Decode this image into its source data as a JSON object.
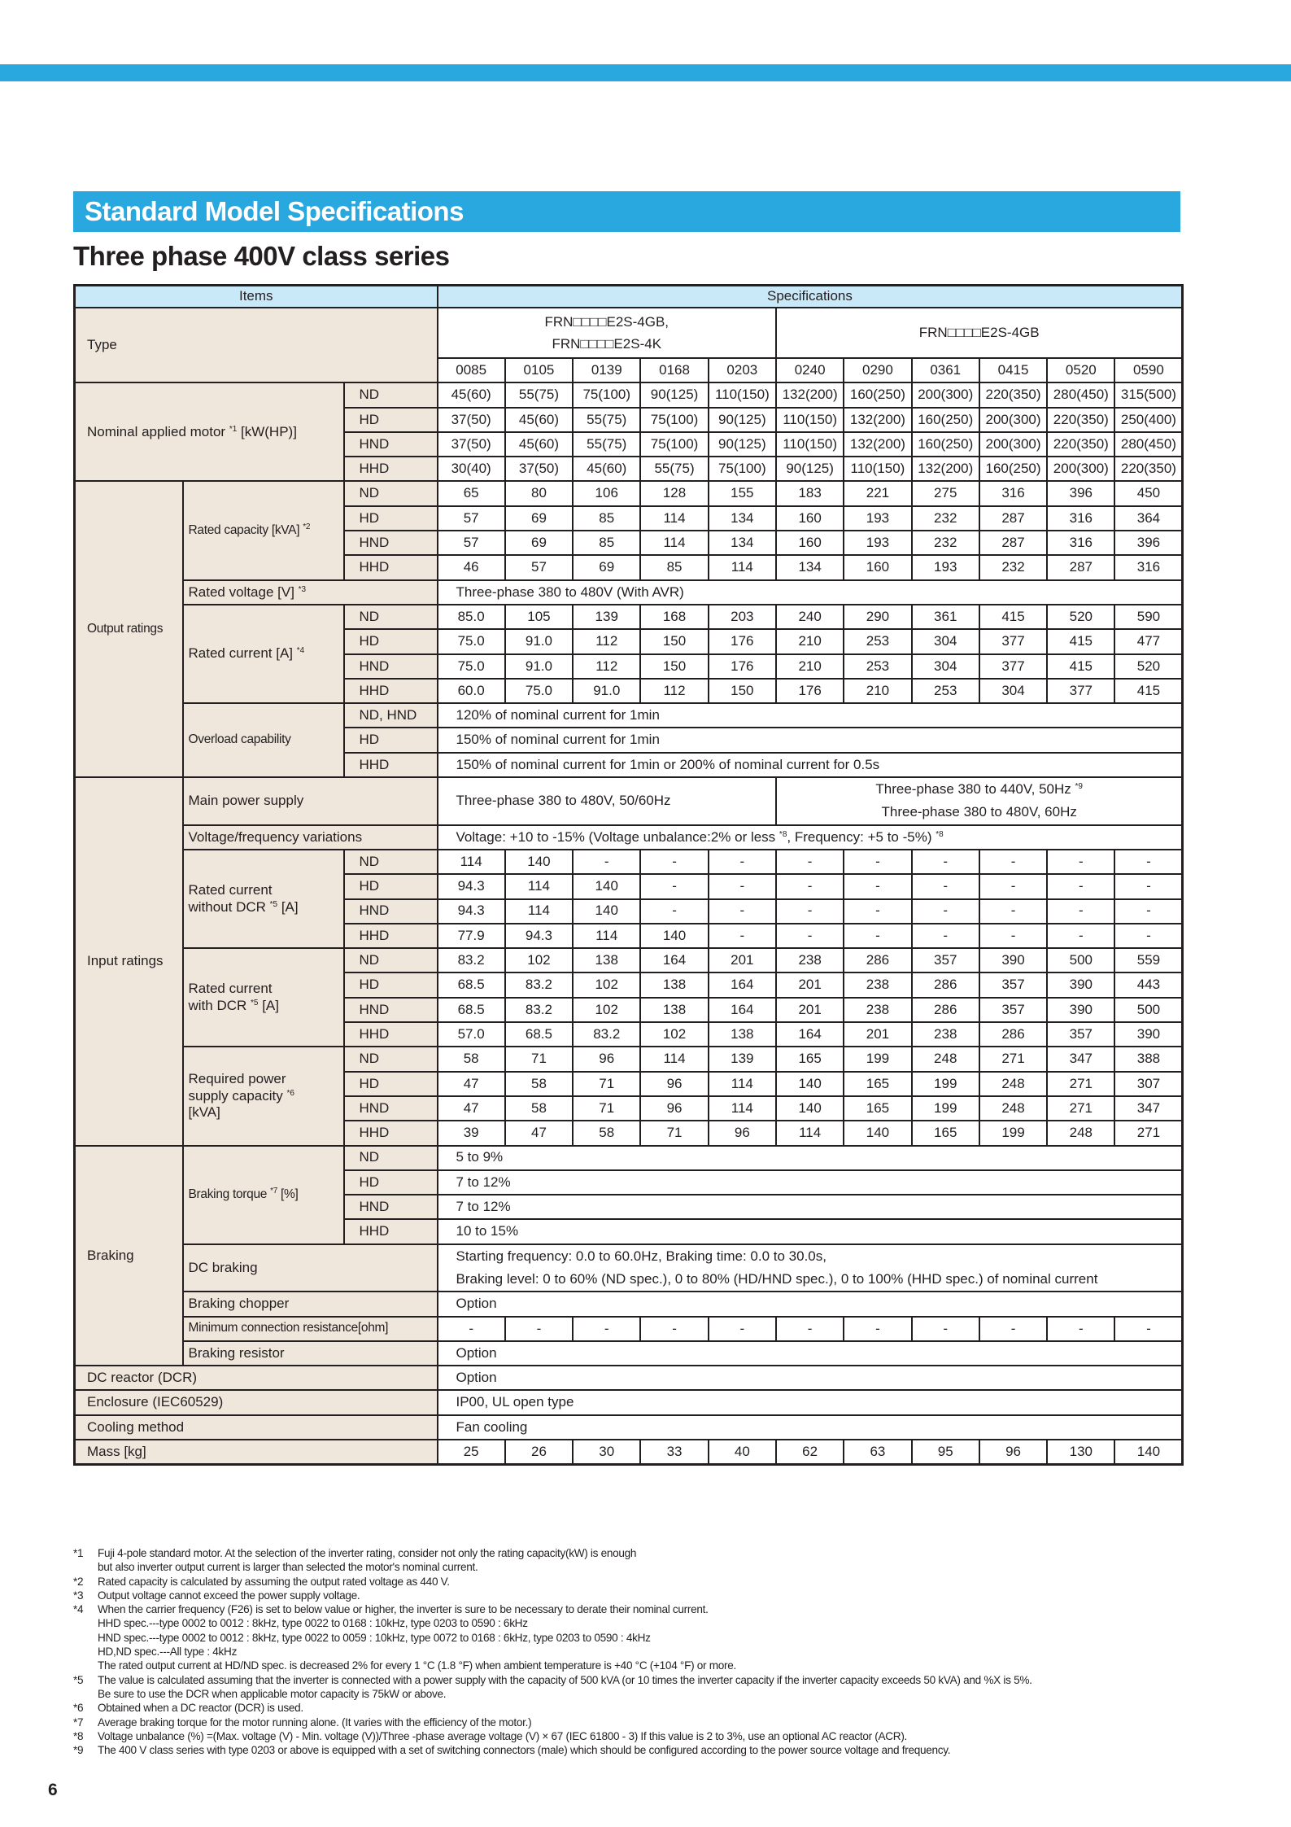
{
  "colors": {
    "accent": "#29a8e0",
    "header_cell": "#c9e8f8",
    "label_cell": "#efe6dc"
  },
  "section_title": "Standard Model Specifications",
  "subtitle": "Three phase 400V class series",
  "table": {
    "items_label": "Items",
    "specs_label": "Specifications",
    "type": {
      "label": "Type",
      "group1": [
        "FRN□□□□E2S-4GB,",
        "FRN□□□□E2S-4K"
      ],
      "group2": "FRN□□□□E2S-4GB",
      "codes": [
        "0085",
        "0105",
        "0139",
        "0168",
        "0203",
        "0240",
        "0290",
        "0361",
        "0415",
        "0520",
        "0590"
      ]
    },
    "sections": [
      {
        "label": "Nominal applied motor *1 [kW(HP)]",
        "wide": true,
        "modes": [
          {
            "mode": "ND",
            "values": [
              "45(60)",
              "55(75)",
              "75(100)",
              "90(125)",
              "110(150)",
              "132(200)",
              "160(250)",
              "200(300)",
              "220(350)",
              "280(450)",
              "315(500)"
            ]
          },
          {
            "mode": "HD",
            "values": [
              "37(50)",
              "45(60)",
              "55(75)",
              "75(100)",
              "90(125)",
              "110(150)",
              "132(200)",
              "160(250)",
              "200(300)",
              "220(350)",
              "250(400)"
            ]
          },
          {
            "mode": "HND",
            "values": [
              "37(50)",
              "45(60)",
              "55(75)",
              "75(100)",
              "90(125)",
              "110(150)",
              "132(200)",
              "160(250)",
              "200(300)",
              "220(350)",
              "280(450)"
            ]
          },
          {
            "mode": "HHD",
            "values": [
              "30(40)",
              "37(50)",
              "45(60)",
              "55(75)",
              "75(100)",
              "90(125)",
              "110(150)",
              "132(200)",
              "160(250)",
              "200(300)",
              "220(350)"
            ]
          }
        ]
      },
      {
        "label": "Output ratings",
        "small": true,
        "items": [
          {
            "label": [
              "Rated capacity [kVA] *2"
            ],
            "small": true,
            "modes": [
              {
                "mode": "ND",
                "values": [
                  "65",
                  "80",
                  "106",
                  "128",
                  "155",
                  "183",
                  "221",
                  "275",
                  "316",
                  "396",
                  "450"
                ]
              },
              {
                "mode": "HD",
                "values": [
                  "57",
                  "69",
                  "85",
                  "114",
                  "134",
                  "160",
                  "193",
                  "232",
                  "287",
                  "316",
                  "364"
                ]
              },
              {
                "mode": "HND",
                "values": [
                  "57",
                  "69",
                  "85",
                  "114",
                  "134",
                  "160",
                  "193",
                  "232",
                  "287",
                  "316",
                  "396"
                ]
              },
              {
                "mode": "HHD",
                "values": [
                  "46",
                  "57",
                  "69",
                  "85",
                  "114",
                  "134",
                  "160",
                  "193",
                  "232",
                  "287",
                  "316"
                ]
              }
            ]
          },
          {
            "label": [
              "Rated voltage [V] *3"
            ],
            "text": "Three-phase 380 to 480V (With AVR)"
          },
          {
            "label": [
              "Rated current [A] *4"
            ],
            "modes": [
              {
                "mode": "ND",
                "values": [
                  "85.0",
                  "105",
                  "139",
                  "168",
                  "203",
                  "240",
                  "290",
                  "361",
                  "415",
                  "520",
                  "590"
                ]
              },
              {
                "mode": "HD",
                "values": [
                  "75.0",
                  "91.0",
                  "112",
                  "150",
                  "176",
                  "210",
                  "253",
                  "304",
                  "377",
                  "415",
                  "477"
                ]
              },
              {
                "mode": "HND",
                "values": [
                  "75.0",
                  "91.0",
                  "112",
                  "150",
                  "176",
                  "210",
                  "253",
                  "304",
                  "377",
                  "415",
                  "520"
                ]
              },
              {
                "mode": "HHD",
                "values": [
                  "60.0",
                  "75.0",
                  "91.0",
                  "112",
                  "150",
                  "176",
                  "210",
                  "253",
                  "304",
                  "377",
                  "415"
                ]
              }
            ]
          },
          {
            "label": [
              "Overload capability"
            ],
            "small": true,
            "modes": [
              {
                "mode": "ND, HND",
                "text": "120% of nominal current for 1min"
              },
              {
                "mode": "HD",
                "text": "150% of nominal current for 1min"
              },
              {
                "mode": "HHD",
                "text": "150% of nominal current for 1min or 200% of nominal current for 0.5s"
              }
            ]
          }
        ]
      },
      {
        "label": "Input ratings",
        "items": [
          {
            "label": [
              "Main power supply"
            ],
            "split": {
              "left": "Three-phase 380 to 480V, 50/60Hz",
              "right": [
                "Three-phase 380 to 440V, 50Hz *9",
                "Three-phase 380 to 480V, 60Hz"
              ]
            }
          },
          {
            "label": [
              "Voltage/frequency variations"
            ],
            "text": "Voltage: +10 to -15% (Voltage unbalance:2% or less *8, Frequency: +5 to -5%) *8"
          },
          {
            "label": [
              "Rated current",
              "without DCR *5 [A]"
            ],
            "modes": [
              {
                "mode": "ND",
                "values": [
                  "114",
                  "140",
                  "-",
                  "-",
                  "-",
                  "-",
                  "-",
                  "-",
                  "-",
                  "-",
                  "-"
                ]
              },
              {
                "mode": "HD",
                "values": [
                  "94.3",
                  "114",
                  "140",
                  "-",
                  "-",
                  "-",
                  "-",
                  "-",
                  "-",
                  "-",
                  "-"
                ]
              },
              {
                "mode": "HND",
                "values": [
                  "94.3",
                  "114",
                  "140",
                  "-",
                  "-",
                  "-",
                  "-",
                  "-",
                  "-",
                  "-",
                  "-"
                ]
              },
              {
                "mode": "HHD",
                "values": [
                  "77.9",
                  "94.3",
                  "114",
                  "140",
                  "-",
                  "-",
                  "-",
                  "-",
                  "-",
                  "-",
                  "-"
                ]
              }
            ]
          },
          {
            "label": [
              "Rated current",
              "with DCR *5 [A]"
            ],
            "modes": [
              {
                "mode": "ND",
                "values": [
                  "83.2",
                  "102",
                  "138",
                  "164",
                  "201",
                  "238",
                  "286",
                  "357",
                  "390",
                  "500",
                  "559"
                ]
              },
              {
                "mode": "HD",
                "values": [
                  "68.5",
                  "83.2",
                  "102",
                  "138",
                  "164",
                  "201",
                  "238",
                  "286",
                  "357",
                  "390",
                  "443"
                ]
              },
              {
                "mode": "HND",
                "values": [
                  "68.5",
                  "83.2",
                  "102",
                  "138",
                  "164",
                  "201",
                  "238",
                  "286",
                  "357",
                  "390",
                  "500"
                ]
              },
              {
                "mode": "HHD",
                "values": [
                  "57.0",
                  "68.5",
                  "83.2",
                  "102",
                  "138",
                  "164",
                  "201",
                  "238",
                  "286",
                  "357",
                  "390"
                ]
              }
            ]
          },
          {
            "label": [
              "Required power",
              "supply capacity *6",
              " [kVA]"
            ],
            "modes": [
              {
                "mode": "ND",
                "values": [
                  "58",
                  "71",
                  "96",
                  "114",
                  "139",
                  "165",
                  "199",
                  "248",
                  "271",
                  "347",
                  "388"
                ]
              },
              {
                "mode": "HD",
                "values": [
                  "47",
                  "58",
                  "71",
                  "96",
                  "114",
                  "140",
                  "165",
                  "199",
                  "248",
                  "271",
                  "307"
                ]
              },
              {
                "mode": "HND",
                "values": [
                  "47",
                  "58",
                  "71",
                  "96",
                  "114",
                  "140",
                  "165",
                  "199",
                  "248",
                  "271",
                  "347"
                ]
              },
              {
                "mode": "HHD",
                "values": [
                  "39",
                  "47",
                  "58",
                  "71",
                  "96",
                  "114",
                  "140",
                  "165",
                  "199",
                  "248",
                  "271"
                ]
              }
            ]
          }
        ]
      },
      {
        "label": "Braking",
        "items": [
          {
            "label": [
              "Braking torque *7 [%]"
            ],
            "small": true,
            "modes": [
              {
                "mode": "ND",
                "text": "5 to 9%"
              },
              {
                "mode": "HD",
                "text": "7 to 12%"
              },
              {
                "mode": "HND",
                "text": "7 to 12%"
              },
              {
                "mode": "HHD",
                "text": "10 to 15%"
              }
            ]
          },
          {
            "label": [
              "DC braking"
            ],
            "lines": [
              "Starting frequency: 0.0 to 60.0Hz, Braking time: 0.0 to 30.0s,",
              "Braking level:  0 to 60% (ND spec.), 0 to 80% (HD/HND spec.), 0 to 100% (HHD spec.) of nominal current"
            ]
          },
          {
            "label": [
              "Braking chopper"
            ],
            "text": "Option"
          },
          {
            "label": [
              "Minimum connection resistance[ohm]"
            ],
            "small": true,
            "values": [
              "-",
              "-",
              "-",
              "-",
              "-",
              "-",
              "-",
              "-",
              "-",
              "-",
              "-"
            ]
          },
          {
            "label": [
              "Braking resistor"
            ],
            "text": "Option"
          }
        ]
      },
      {
        "label": "DC reactor (DCR)",
        "single": true,
        "text": "Option"
      },
      {
        "label": "Enclosure (IEC60529)",
        "single": true,
        "text": "IP00, UL open type"
      },
      {
        "label": "Cooling method",
        "single": true,
        "text": "Fan cooling"
      },
      {
        "label": "Mass [kg]",
        "single": true,
        "values": [
          "25",
          "26",
          "30",
          "33",
          "40",
          "62",
          "63",
          "95",
          "96",
          "130",
          "140"
        ]
      }
    ]
  },
  "footnotes": [
    {
      "mark": "*1",
      "lines": [
        "Fuji 4-pole standard motor. At the selection of the inverter rating, consider not only the rating capacity(kW) is enough",
        "but also inverter output current is larger than selected the motor's nominal current."
      ]
    },
    {
      "mark": "*2",
      "lines": [
        "Rated capacity is calculated by assuming the output rated voltage as 440 V."
      ]
    },
    {
      "mark": "*3",
      "lines": [
        "Output voltage cannot exceed the power supply voltage."
      ]
    },
    {
      "mark": "*4",
      "lines": [
        "When the carrier frequency (F26)  is set to below value or higher, the inverter is sure to be necessary to derate their nominal current.",
        "HHD spec.---type 0002 to 0012 : 8kHz, type 0022 to 0168 : 10kHz, type 0203 to 0590 : 6kHz",
        "HND spec.---type 0002 to 0012 : 8kHz, type 0022 to 0059 : 10kHz, type 0072 to 0168 : 6kHz, type 0203 to 0590 : 4kHz",
        "HD,ND spec.---All type : 4kHz",
        "The rated output current at HD/ND spec. is decreased 2% for every 1 °C (1.8 °F) when ambient temperature is +40 °C (+104 °F) or more."
      ]
    },
    {
      "mark": "*5",
      "lines": [
        "The value is calculated assuming that the inverter is connected with a power supply with the capacity of 500 kVA (or 10 times the inverter capacity if the inverter capacity exceeds 50 kVA) and %X is 5%.",
        "Be sure to use the DCR when applicable motor capacity is 75kW or above."
      ]
    },
    {
      "mark": "*6",
      "lines": [
        "Obtained when a DC reactor (DCR) is used."
      ]
    },
    {
      "mark": "*7",
      "lines": [
        "Average braking torque for the motor running alone. (It varies with the efficiency of the motor.)"
      ]
    },
    {
      "mark": "*8",
      "lines": [
        "Voltage unbalance (%) =(Max. voltage (V) - Min. voltage (V))/Three -phase average voltage (V) × 67 (IEC 61800 - 3) If this value is 2 to 3%, use an optional AC reactor (ACR)."
      ]
    },
    {
      "mark": "*9",
      "lines": [
        "The 400 V class series with type 0203 or above is equipped with a set of switching connectors (male) which should be configured according to the power source voltage and frequency."
      ]
    }
  ],
  "page_number": "6"
}
